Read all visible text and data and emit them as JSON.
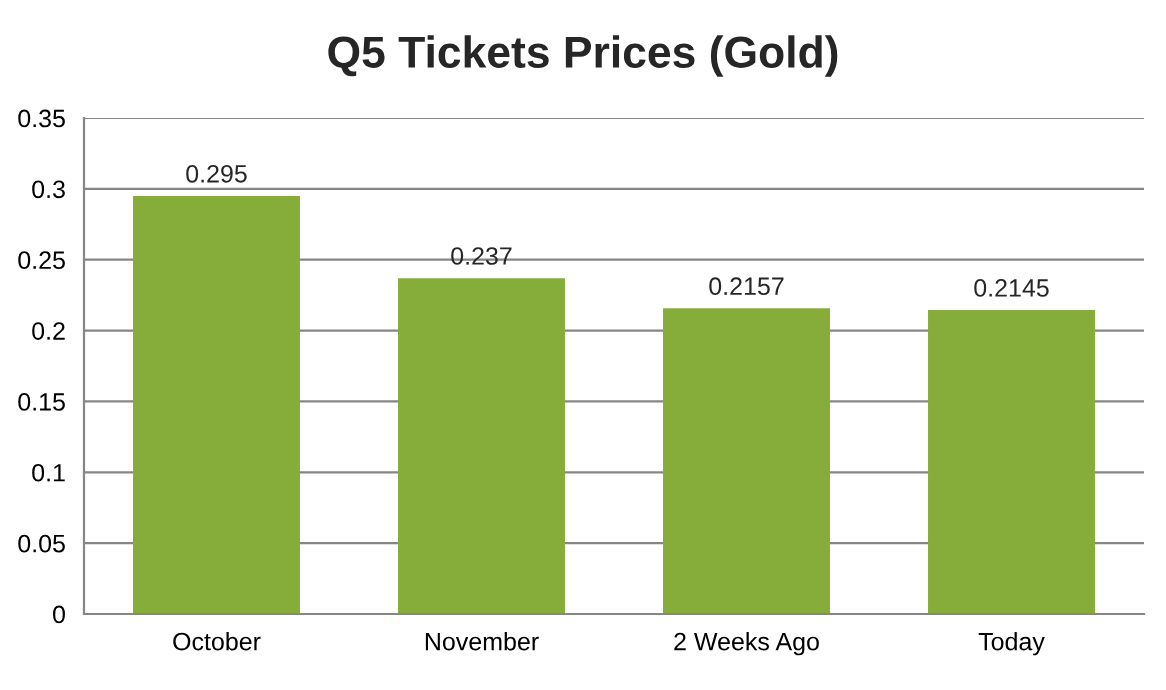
{
  "chart_data": {
    "type": "bar",
    "title": "Q5 Tickets Prices (Gold)",
    "categories": [
      "October",
      "November",
      "2 Weeks Ago",
      "Today"
    ],
    "values": [
      0.295,
      0.237,
      0.2157,
      0.2145
    ],
    "color": "#86ad3a",
    "ylim": [
      0,
      0.35
    ],
    "yticks": [
      0,
      0.05,
      0.1,
      0.15,
      0.2,
      0.25,
      0.3,
      0.35
    ],
    "grid": "y",
    "data_labels": true,
    "legend": false
  }
}
